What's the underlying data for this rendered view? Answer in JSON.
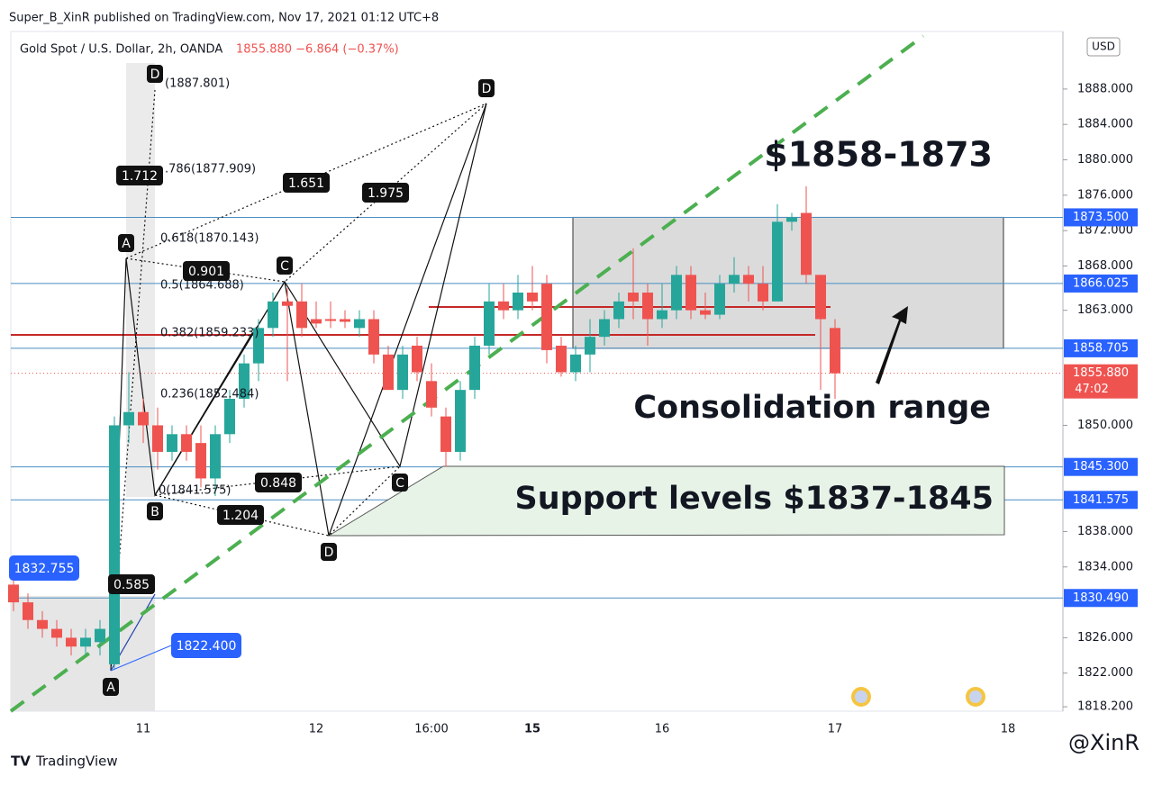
{
  "header": {
    "publisher": "Super_B_XinR published on TradingView.com, Nov 17, 2021 01:12 UTC+8",
    "symbol": "Gold Spot / U.S. Dollar, 2h, OANDA",
    "quote": "1855.880  −6.864 (−0.37%)"
  },
  "chart_data": {
    "type": "candlestick",
    "currency": "USD",
    "up_color": "#26a69a",
    "down_color": "#ef5350",
    "categories": [
      null,
      null,
      null,
      null,
      null,
      null,
      null,
      null,
      null,
      "11",
      null,
      null,
      null,
      null,
      null,
      null,
      null,
      null,
      null,
      null,
      null,
      "12",
      null,
      null,
      null,
      null,
      null,
      null,
      null,
      "16:00",
      null,
      null,
      null,
      null,
      null,
      null,
      "15",
      null,
      null,
      null,
      null,
      null,
      null,
      null,
      null,
      "16",
      null,
      null,
      null,
      null,
      null,
      null,
      null,
      null,
      null,
      null,
      null,
      "17",
      null,
      null,
      null,
      null,
      null,
      null,
      null,
      null,
      null,
      null,
      null,
      "18"
    ],
    "open": [
      1832,
      1830,
      1828,
      1827,
      1826,
      1825,
      1825.5,
      1823,
      1850,
      1851.5,
      1850,
      1847,
      1849,
      1848,
      1844,
      1849,
      1853,
      1857,
      1861,
      1864,
      1864,
      1862,
      1862,
      1862,
      1861,
      1862,
      1858,
      1854,
      1859,
      1855,
      1851,
      1847,
      1854,
      1859,
      1864,
      1863,
      1865,
      1866,
      1859,
      1856,
      1858,
      1860,
      1862,
      1865,
      1865,
      1862,
      1863,
      1867,
      1863,
      1862.5,
      1866,
      1867,
      1866,
      1864,
      1873,
      1874,
      1867,
      1861,
      null,
      null,
      null,
      null,
      null,
      null,
      null,
      null,
      null,
      null,
      null,
      null
    ],
    "high": [
      1833,
      1831,
      1829,
      1828,
      1827,
      1827,
      1828,
      1851,
      1856,
      1853,
      1852,
      1850,
      1850,
      1850,
      1850,
      1854,
      1858,
      1862,
      1865,
      1865.5,
      1866,
      1864,
      1864,
      1863,
      1863,
      1863,
      1859,
      1859,
      1860,
      1857,
      1852,
      1855,
      1860,
      1866,
      1866,
      1867,
      1868,
      1867,
      1860,
      1859,
      1862,
      1863,
      1865,
      1870,
      1866,
      1866,
      1868,
      1868,
      1865,
      1867,
      1869,
      1868,
      1868,
      1875,
      1874,
      1877,
      1867,
      1862,
      null,
      null,
      null,
      null,
      null,
      null,
      null,
      null,
      null,
      null,
      null,
      null
    ],
    "low": [
      1829,
      1827,
      1826,
      1825,
      1824,
      1824,
      1824,
      1822.4,
      1848,
      1848,
      1845,
      1846,
      1846,
      1843,
      1842,
      1848,
      1852,
      1855,
      1860,
      1855,
      1860,
      1861,
      1861,
      1861,
      1860,
      1857,
      1854,
      1853,
      1855,
      1851,
      1845.3,
      1846,
      1853,
      1858,
      1862,
      1862,
      1863,
      1857,
      1855.5,
      1855,
      1856,
      1859,
      1861,
      1862,
      1859,
      1861,
      1862,
      1862,
      1862,
      1862,
      1865,
      1864,
      1863,
      1864,
      1872,
      1866,
      1854,
      1853,
      null,
      null,
      null,
      null,
      null,
      null,
      null,
      null,
      null,
      null,
      null,
      null
    ],
    "close": [
      1830,
      1828,
      1827,
      1826,
      1825,
      1826,
      1827,
      1850,
      1851.5,
      1850,
      1847,
      1849,
      1847,
      1844,
      1849,
      1853,
      1857,
      1861,
      1864,
      1863.5,
      1861,
      1861.5,
      1861.8,
      1861.7,
      1862,
      1858,
      1854,
      1858,
      1856,
      1852,
      1847,
      1854,
      1859,
      1864,
      1863,
      1865,
      1864,
      1858.5,
      1856,
      1858,
      1860,
      1862,
      1864,
      1864,
      1862,
      1863,
      1867,
      1863,
      1862.5,
      1866,
      1867,
      1866,
      1864,
      1873,
      1873.5,
      1867,
      1862,
      1855.88,
      null,
      null,
      null,
      null,
      null,
      null,
      null,
      null,
      null,
      null,
      null,
      null
    ],
    "ylim": [
      1817.7,
      1894.5
    ],
    "yticks": [
      {
        "value": 1888,
        "label": "1888.000"
      },
      {
        "value": 1884,
        "label": "1884.000"
      },
      {
        "value": 1880,
        "label": "1880.000"
      },
      {
        "value": 1876,
        "label": "1876.000"
      },
      {
        "value": 1872,
        "label": "1872.000"
      },
      {
        "value": 1868,
        "label": "1868.000"
      },
      {
        "value": 1863,
        "label": "1863.000"
      },
      {
        "value": 1850,
        "label": "1850.000"
      },
      {
        "value": 1838,
        "label": "1838.000"
      },
      {
        "value": 1834,
        "label": "1834.000"
      },
      {
        "value": 1826,
        "label": "1826.000"
      },
      {
        "value": 1822,
        "label": "1822.000"
      },
      {
        "value": 1818.2,
        "label": "1818.200"
      }
    ],
    "levels": [
      {
        "value": 1873.5,
        "label": "1873.500"
      },
      {
        "value": 1866.025,
        "label": "1866.025"
      },
      {
        "value": 1858.705,
        "label": "1858.705"
      },
      {
        "value": 1845.3,
        "label": "1845.300"
      },
      {
        "value": 1841.575,
        "label": "1841.575"
      },
      {
        "value": 1830.49,
        "label": "1830.490"
      }
    ],
    "last_price": {
      "value": 1855.88,
      "label": "1855.880"
    },
    "countdown": "47:02",
    "annotations": {
      "range_title": "$1858-1873",
      "range_note": "Consolidation range",
      "support_note": "Support levels $1837-1845",
      "fib": [
        "(1887.801)",
        ".786(1877.909)",
        "0.618(1870.143)",
        "0.5(1864.688)",
        "0.382(1859.233)",
        "0.236(1852.484)",
        "0(1841.575)"
      ],
      "points": [
        "D",
        "A",
        "B",
        "C",
        "D",
        "C",
        "D",
        "A"
      ],
      "ratios": [
        "1.712",
        "1.651",
        "1.975",
        "0.901",
        "0.848",
        "1.204",
        "0.585"
      ],
      "price_labels": [
        "1832.755",
        "1822.400"
      ]
    }
  },
  "footer": {
    "brand": "TradingView",
    "watermark": "@XinR"
  }
}
